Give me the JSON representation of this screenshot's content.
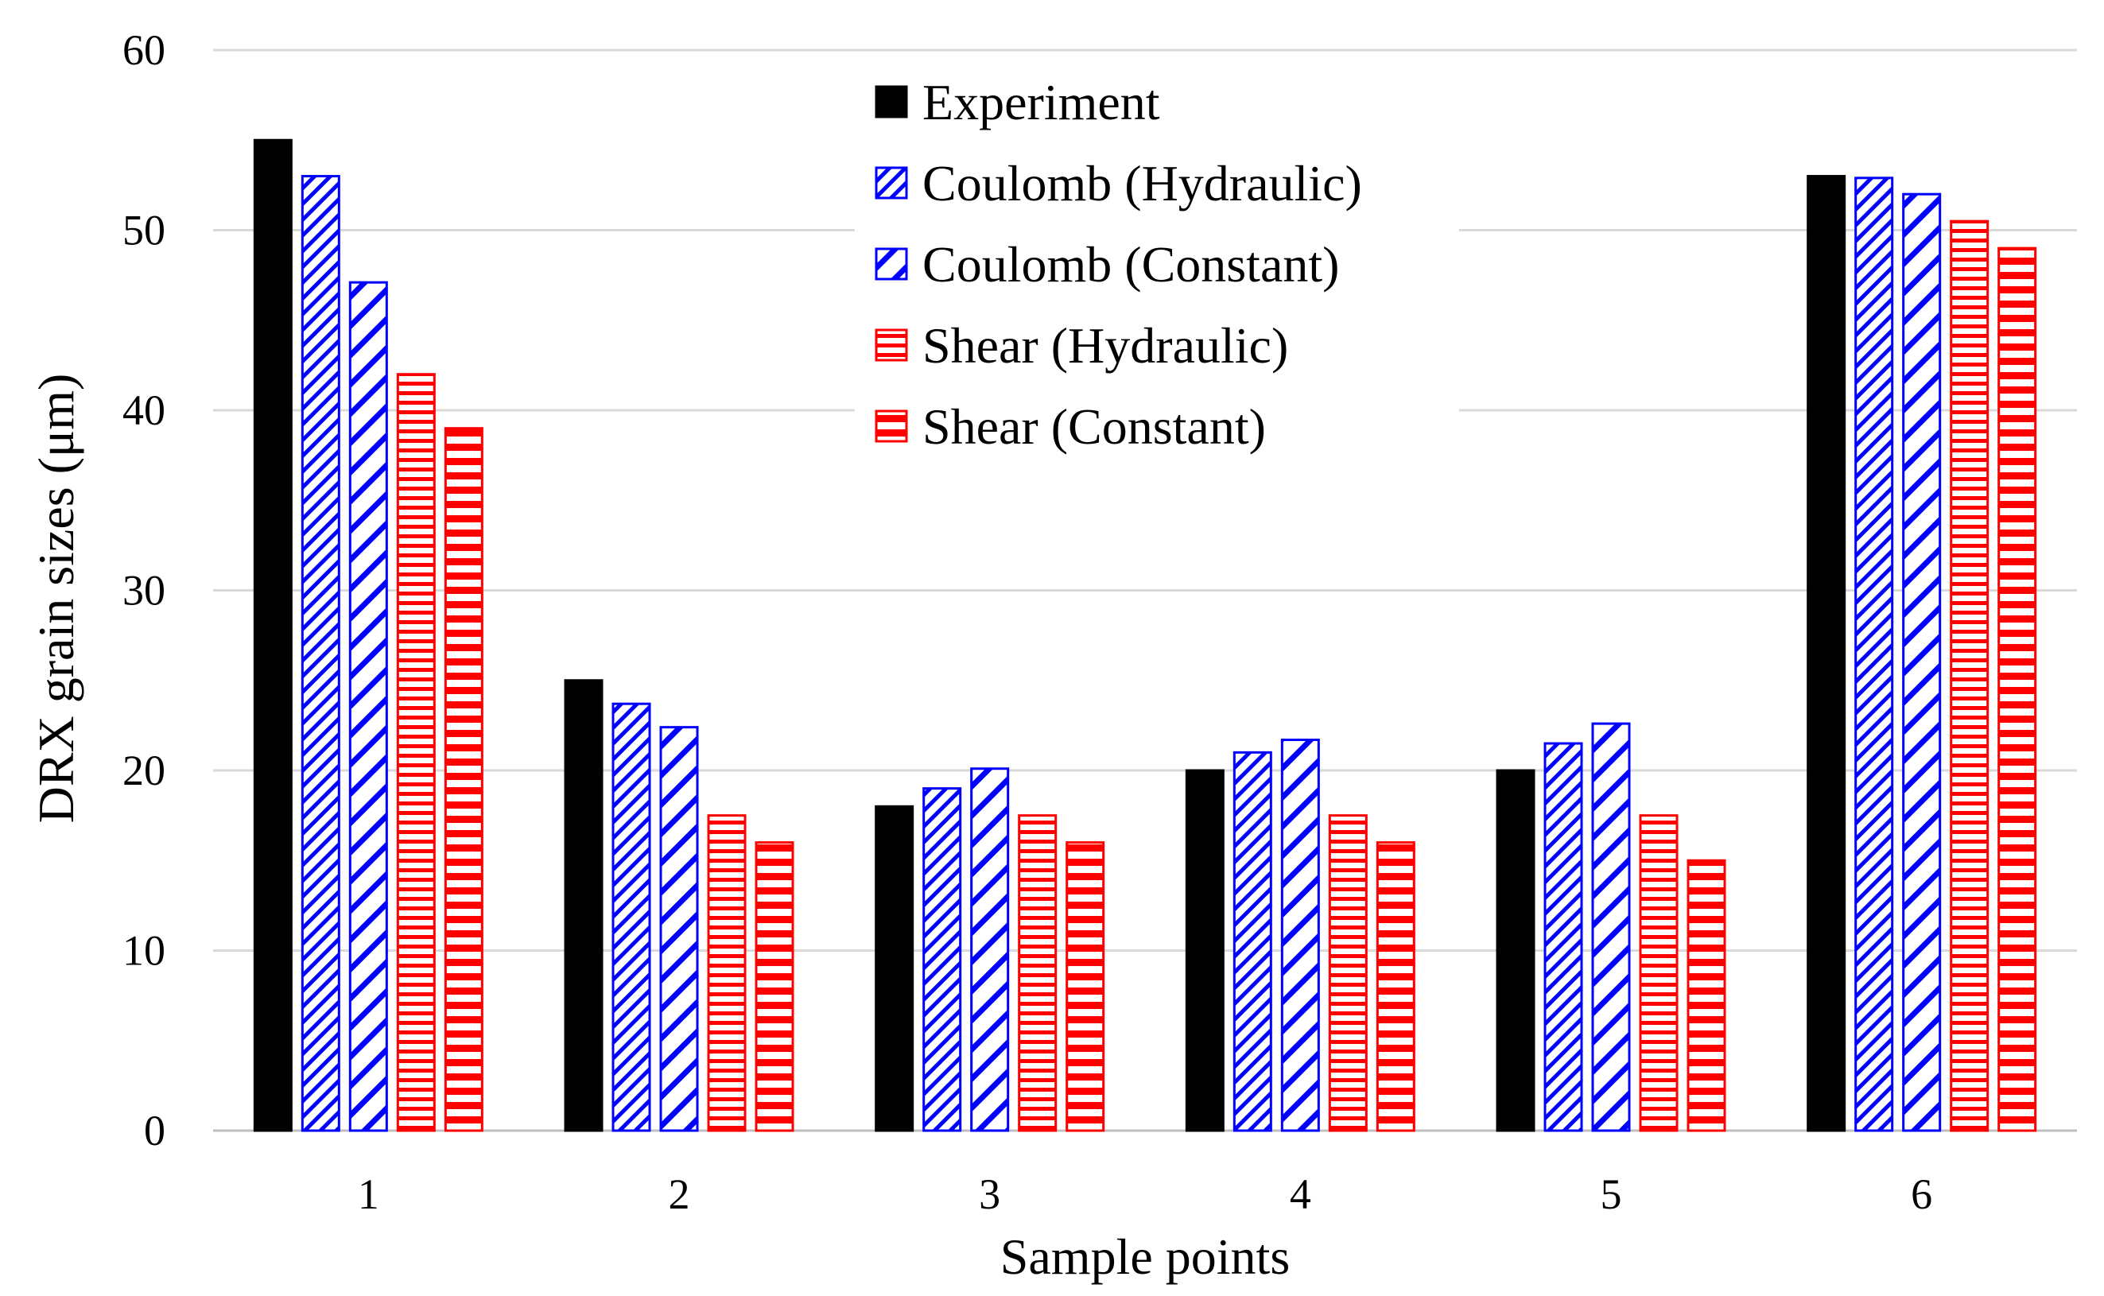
{
  "chart_data": {
    "type": "bar",
    "title": "",
    "xlabel": "Sample points",
    "ylabel": "DRX grain sizes (μm)",
    "ylim": [
      0,
      60
    ],
    "yticks": [
      0,
      10,
      20,
      30,
      40,
      50,
      60
    ],
    "grid": true,
    "legend_position": "top-center",
    "categories": [
      "1",
      "2",
      "3",
      "4",
      "5",
      "6"
    ],
    "series": [
      {
        "name": "Experiment",
        "color": "#000000",
        "pattern": "solid",
        "values": [
          55,
          25,
          18,
          20,
          20,
          53
        ]
      },
      {
        "name": "Coulomb (Hydraulic)",
        "color": "#0000ff",
        "pattern": "dense-diagonal",
        "values": [
          53,
          23.7,
          19,
          21,
          21.5,
          52.9
        ]
      },
      {
        "name": "Coulomb (Constant)",
        "color": "#0000ff",
        "pattern": "wide-diagonal",
        "values": [
          47.1,
          22.4,
          20.1,
          21.7,
          22.6,
          52
        ]
      },
      {
        "name": "Shear (Hydraulic)",
        "color": "#ff0000",
        "pattern": "dense-horizontal",
        "values": [
          42,
          17.5,
          17.5,
          17.5,
          17.5,
          50.5
        ]
      },
      {
        "name": "Shear (Constant)",
        "color": "#ff0000",
        "pattern": "wide-horizontal",
        "values": [
          39,
          16,
          16,
          16,
          15,
          49
        ]
      }
    ]
  }
}
